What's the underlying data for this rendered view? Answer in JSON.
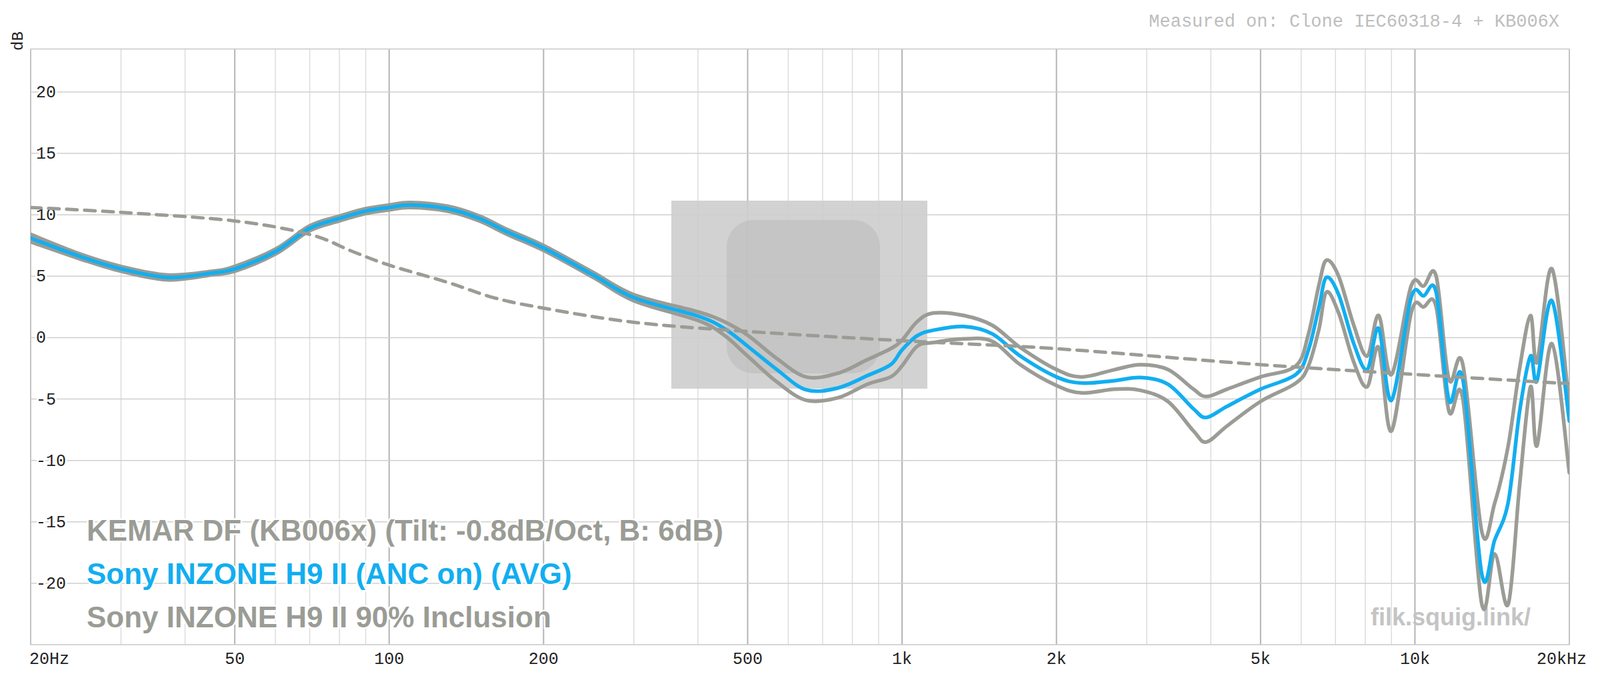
{
  "chart_data": {
    "type": "line",
    "title": "Measured on: Clone IEC60318-4 + KB006X",
    "ylabel": "dB",
    "annotation": "filk.squig.link/",
    "log": "x",
    "grid": true,
    "legend": "bottom-left",
    "xlim": [
      20,
      20000
    ],
    "ylim": [
      -25,
      23.5
    ],
    "xticks": [
      {
        "value": 20,
        "label": "20Hz"
      },
      50,
      100,
      200,
      500,
      {
        "value": 1000,
        "label": "1k"
      },
      {
        "value": 2000,
        "label": "2k"
      },
      {
        "value": 5000,
        "label": "5k"
      },
      {
        "value": 10000,
        "label": "10k"
      },
      {
        "value": 20000,
        "label": "20kHz"
      }
    ],
    "x_minor_ticks": [
      30,
      40,
      60,
      70,
      80,
      90,
      300,
      400,
      600,
      700,
      800,
      900,
      3000,
      4000,
      6000,
      7000,
      8000,
      9000
    ],
    "yticks": [
      20,
      15,
      10,
      5,
      0,
      -5,
      -10,
      -15,
      -20
    ],
    "x": [
      20,
      25,
      30,
      37,
      45,
      50,
      60,
      70,
      80,
      90,
      100,
      110,
      130,
      150,
      170,
      200,
      250,
      300,
      400,
      450,
      500,
      570,
      650,
      750,
      855,
      950,
      1000,
      1070,
      1150,
      1320,
      1500,
      1700,
      2000,
      2240,
      2600,
      2920,
      3300,
      3700,
      3920,
      4300,
      5000,
      5860,
      6200,
      6500,
      6720,
      7100,
      7600,
      8070,
      8500,
      9000,
      9830,
      10400,
      11000,
      11650,
      12400,
      13500,
      14300,
      15200,
      16000,
      16800,
      17300,
      18500,
      20000
    ],
    "series": [
      {
        "name": "KEMAR DF (KB006x) (Tilt: -0.8dB/Oct, B: 6dB)",
        "color": "#9a9c95",
        "line_style": "dashed",
        "x": [
          20,
          30,
          50,
          70,
          85,
          100,
          130,
          160,
          200,
          300,
          500,
          1000,
          2000,
          5000,
          10000,
          20000
        ],
        "values": [
          10.6,
          10.2,
          9.5,
          8.4,
          7.0,
          5.9,
          4.5,
          3.25,
          2.4,
          1.25,
          0.5,
          -0.25,
          -0.9,
          -2.2,
          -3.0,
          -3.75
        ]
      },
      {
        "name": "Sony INZONE H9 II (ANC on) (AVG)",
        "color": "#12aef0",
        "line_style": "solid",
        "values": [
          8.1,
          6.6,
          5.6,
          4.9,
          5.25,
          5.6,
          7.0,
          8.9,
          9.7,
          10.3,
          10.6,
          10.8,
          10.5,
          9.7,
          8.6,
          7.3,
          5.1,
          3.25,
          1.75,
          0.75,
          -0.7,
          -2.6,
          -4.25,
          -4.1,
          -3.1,
          -2.2,
          -1.0,
          0.15,
          0.6,
          0.9,
          0.3,
          -1.5,
          -3.2,
          -3.7,
          -3.5,
          -3.25,
          -3.8,
          -5.8,
          -6.5,
          -5.6,
          -4.2,
          -3.0,
          -1.0,
          2.5,
          4.9,
          3.5,
          -0.5,
          -2.6,
          0.75,
          -5.1,
          3.25,
          3.4,
          3.7,
          -5.1,
          -3.4,
          -19.25,
          -16.5,
          -13.4,
          -6,
          -1.5,
          -3.5,
          3.0,
          -6.8
        ]
      },
      {
        "name": "Sony INZONE H9 II 90% Inclusion",
        "color": "#9a9c95",
        "line_style": "solid",
        "values": [
          8.4,
          6.8,
          5.8,
          5.1,
          5.4,
          5.8,
          7.2,
          9.1,
          9.9,
          10.5,
          10.8,
          11.0,
          10.7,
          9.9,
          8.8,
          7.5,
          5.3,
          3.5,
          2.1,
          1.3,
          0.2,
          -1.7,
          -3.2,
          -2.9,
          -1.8,
          -0.9,
          -0.2,
          1.3,
          2.0,
          1.8,
          1.0,
          -0.8,
          -2.6,
          -3.2,
          -2.6,
          -2.2,
          -2.6,
          -4.2,
          -4.8,
          -4.2,
          -3.2,
          -2.3,
          0.3,
          4.3,
          6.3,
          5.0,
          1.0,
          -1.5,
          1.8,
          -3.0,
          4.2,
          4.2,
          5.0,
          -3.4,
          -2.2,
          -15.8,
          -13.5,
          -8.8,
          -2.5,
          1.8,
          -2.0,
          5.6,
          -5.5
        ],
        "lower": [
          7.8,
          6.4,
          5.4,
          4.7,
          5.1,
          5.4,
          6.8,
          8.7,
          9.5,
          10.1,
          10.4,
          10.6,
          10.3,
          9.5,
          8.4,
          7.1,
          4.9,
          3.0,
          1.4,
          0.2,
          -1.5,
          -3.6,
          -5.1,
          -4.9,
          -3.8,
          -3.2,
          -2.3,
          -0.7,
          -0.4,
          -0.1,
          -0.3,
          -2.2,
          -3.9,
          -4.5,
          -4.2,
          -4.3,
          -5.2,
          -7.6,
          -8.5,
          -7.2,
          -5.2,
          -3.7,
          -2.3,
          0.7,
          3.7,
          2.0,
          -2.0,
          -4.0,
          -0.8,
          -7.6,
          2.0,
          2.5,
          2.5,
          -6.0,
          -5.0,
          -21.7,
          -17.6,
          -21.7,
          -12,
          -4.0,
          -8.8,
          -0.5,
          -11
        ]
      }
    ]
  }
}
